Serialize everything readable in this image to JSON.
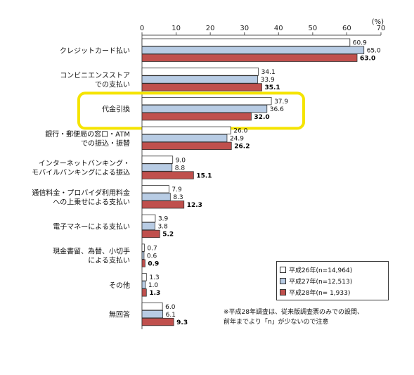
{
  "chart_data": {
    "type": "bar",
    "orientation": "horizontal",
    "unit": "(%)",
    "xlim": [
      0,
      70
    ],
    "xticks": [
      0,
      10,
      20,
      30,
      40,
      50,
      60,
      70
    ],
    "categories": [
      [
        "クレジットカード払い"
      ],
      [
        "コンビニエンスストア",
        "での支払い"
      ],
      [
        "代金引換"
      ],
      [
        "銀行・郵便局の窓口・ATM",
        "での振込・振替"
      ],
      [
        "インターネットバンキング・",
        "モバイルバンキングによる振込"
      ],
      [
        "通信料金・プロバイダ利用料金",
        "への上乗せによる支払い"
      ],
      [
        "電子マネーによる支払い"
      ],
      [
        "現金書留、為替、小切手",
        "による支払い"
      ],
      [
        "その他"
      ],
      [
        "無回答"
      ]
    ],
    "series": [
      {
        "name": "平成26年(n=14,964)",
        "color": "#ffffff",
        "values": [
          60.9,
          34.1,
          37.9,
          26.0,
          9.0,
          7.9,
          3.9,
          0.7,
          1.3,
          6.0
        ]
      },
      {
        "name": "平成27年(n=12,513)",
        "color": "#b8cce4",
        "values": [
          65.0,
          33.9,
          36.6,
          24.9,
          8.8,
          8.3,
          3.8,
          0.6,
          1.0,
          6.1
        ]
      },
      {
        "name": "平成28年(n= 1,933)",
        "color": "#c0504d",
        "values": [
          63.0,
          35.1,
          32.0,
          26.2,
          15.1,
          12.3,
          5.2,
          0.9,
          1.3,
          9.3
        ]
      }
    ],
    "value_labels": [
      [
        "60.9",
        "34.1",
        "37.9",
        "26.0",
        "9.0",
        "7.9",
        "3.9",
        "0.7",
        "1.3",
        "6.0"
      ],
      [
        "65.0",
        "33.9",
        "36.6",
        "24.9",
        "8.8",
        "8.3",
        "3.8",
        "0.6",
        "1.0",
        "6.1"
      ],
      [
        "63.0",
        "35.1",
        "32.0",
        "26.2",
        "15.1",
        "12.3",
        "5.2",
        "0.9",
        "1.3",
        "9.3"
      ]
    ],
    "highlight_category_index": 2,
    "highlight_color": "#f5e400",
    "grid": false
  },
  "legend": {
    "items": [
      "平成26年(n=14,964)",
      "平成27年(n=12,513)",
      "平成28年(n= 1,933)"
    ]
  },
  "note": {
    "line1": "※平成28年調査は、従来版調査票のみでの設問、",
    "line2": "前年までより「n」が少ないので注意"
  }
}
